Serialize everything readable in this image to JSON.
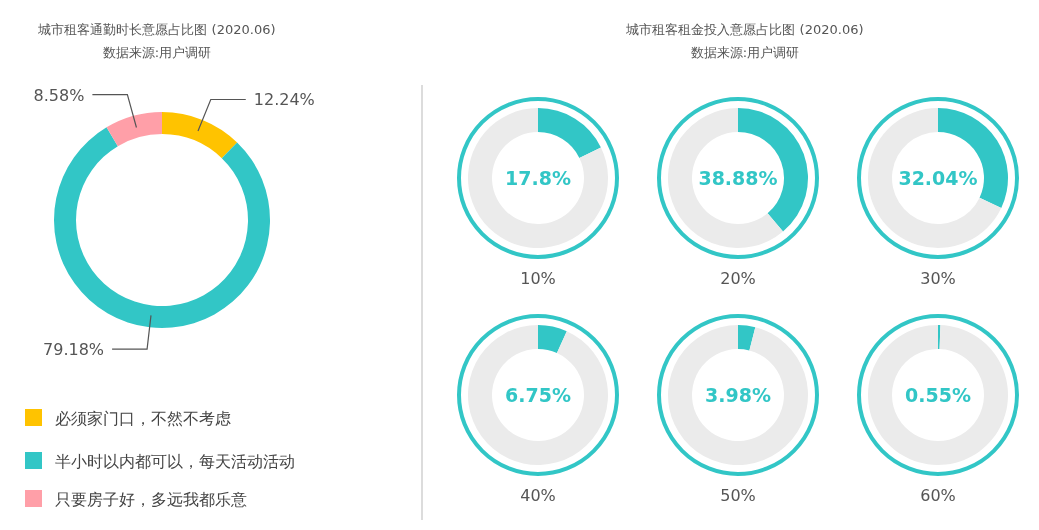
{
  "chart_data": [
    {
      "type": "donut",
      "title": "城市租客通勤时长意愿占比图 (2020.06)",
      "subtitle": "数据来源:用户调研",
      "categories": [
        "必须家门口，不然不考虑",
        "半小时以内都可以，每天活动活动",
        "只要房子好，多远我都乐意"
      ],
      "values": [
        12.24,
        79.18,
        8.58
      ],
      "colors": [
        "#ffc300",
        "#32c6c6",
        "#ff9fa8"
      ],
      "value_labels": [
        "12.24%",
        "79.18%",
        "8.58%"
      ],
      "legend": "bottom left"
    },
    {
      "type": "donut",
      "xlabel": "10%",
      "annotations": [
        "17.8%"
      ],
      "categories": [
        null,
        null
      ],
      "values": [
        17.8,
        82.2
      ],
      "colors": [
        "#32c6c6",
        "#ebebeb"
      ]
    },
    {
      "type": "donut",
      "title": "城市租客租金投入意愿占比图 (2020.06)",
      "subtitle": "数据来源:用户调研",
      "xlabel": "20%",
      "annotations": [
        "38.88%"
      ],
      "categories": [
        null,
        null
      ],
      "values": [
        38.88,
        61.12
      ],
      "colors": [
        "#32c6c6",
        "#ebebeb"
      ]
    },
    {
      "type": "donut",
      "xlabel": "30%",
      "annotations": [
        "32.04%"
      ],
      "categories": [
        null,
        null
      ],
      "values": [
        32.04,
        67.96
      ],
      "colors": [
        "#32c6c6",
        "#ebebeb"
      ]
    },
    {
      "type": "donut",
      "xlabel": "40%",
      "annotations": [
        "6.75%"
      ],
      "categories": [
        null,
        null
      ],
      "values": [
        6.75,
        93.25
      ],
      "colors": [
        "#32c6c6",
        "#ebebeb"
      ]
    },
    {
      "type": "donut",
      "xlabel": "50%",
      "annotations": [
        "3.98%"
      ],
      "categories": [
        null,
        null
      ],
      "values": [
        3.98,
        96.02
      ],
      "colors": [
        "#32c6c6",
        "#ebebeb"
      ]
    },
    {
      "type": "donut",
      "xlabel": "60%",
      "annotations": [
        "0.55%"
      ],
      "categories": [
        null,
        null
      ],
      "values": [
        0.55,
        99.45
      ],
      "colors": [
        "#32c6c6",
        "#ebebeb"
      ]
    }
  ]
}
